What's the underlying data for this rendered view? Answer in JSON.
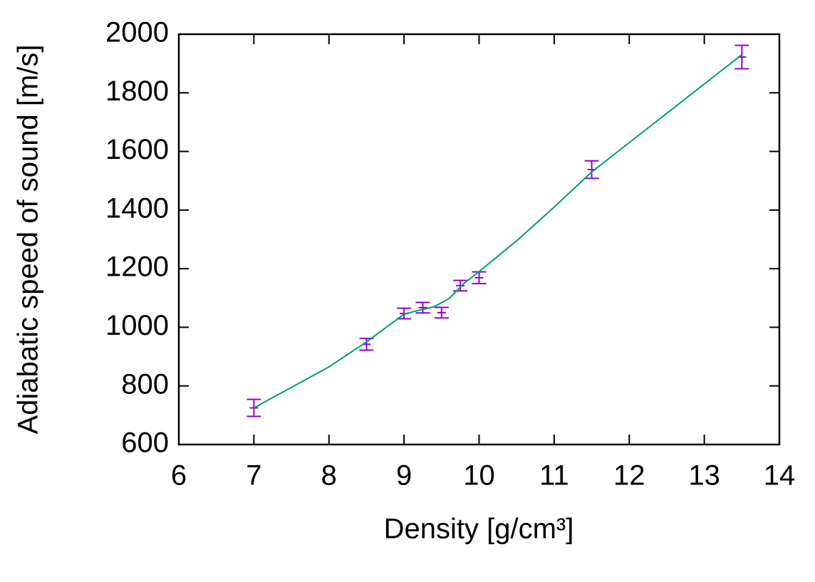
{
  "chart_data": {
    "type": "line",
    "x_label": "Density [g/cm³]",
    "y_label": "Adiabatic speed of sound [m/s]",
    "xlim": [
      6,
      14
    ],
    "xticks": [
      6,
      7,
      8,
      9,
      10,
      11,
      12,
      13,
      14
    ],
    "ylim": [
      600,
      2000
    ],
    "yticks": [
      600,
      800,
      1000,
      1200,
      1400,
      1600,
      1800,
      2000
    ],
    "series": [
      {
        "color": "#9400d3",
        "style": "errorbars",
        "x": [
          7,
          8.5,
          9,
          9.25,
          9.5,
          9.75,
          10,
          11.5,
          13.5
        ],
        "values": [
          725,
          942,
          1047,
          1067,
          1050,
          1142,
          1169,
          1538,
          1922
        ],
        "errors": [
          29,
          20,
          18,
          18,
          18,
          18,
          20,
          30,
          40
        ]
      },
      {
        "color": "#009e73",
        "style": "line",
        "x": [
          7,
          8,
          8.5,
          9,
          9.2,
          9.4,
          9.6,
          9.8,
          10,
          10.5,
          11,
          11.5,
          12,
          12.5,
          13,
          13.5
        ],
        "values": [
          725,
          865,
          950,
          1045,
          1058,
          1070,
          1098,
          1150,
          1190,
          1295,
          1410,
          1530,
          1630,
          1730,
          1830,
          1930
        ]
      }
    ]
  }
}
